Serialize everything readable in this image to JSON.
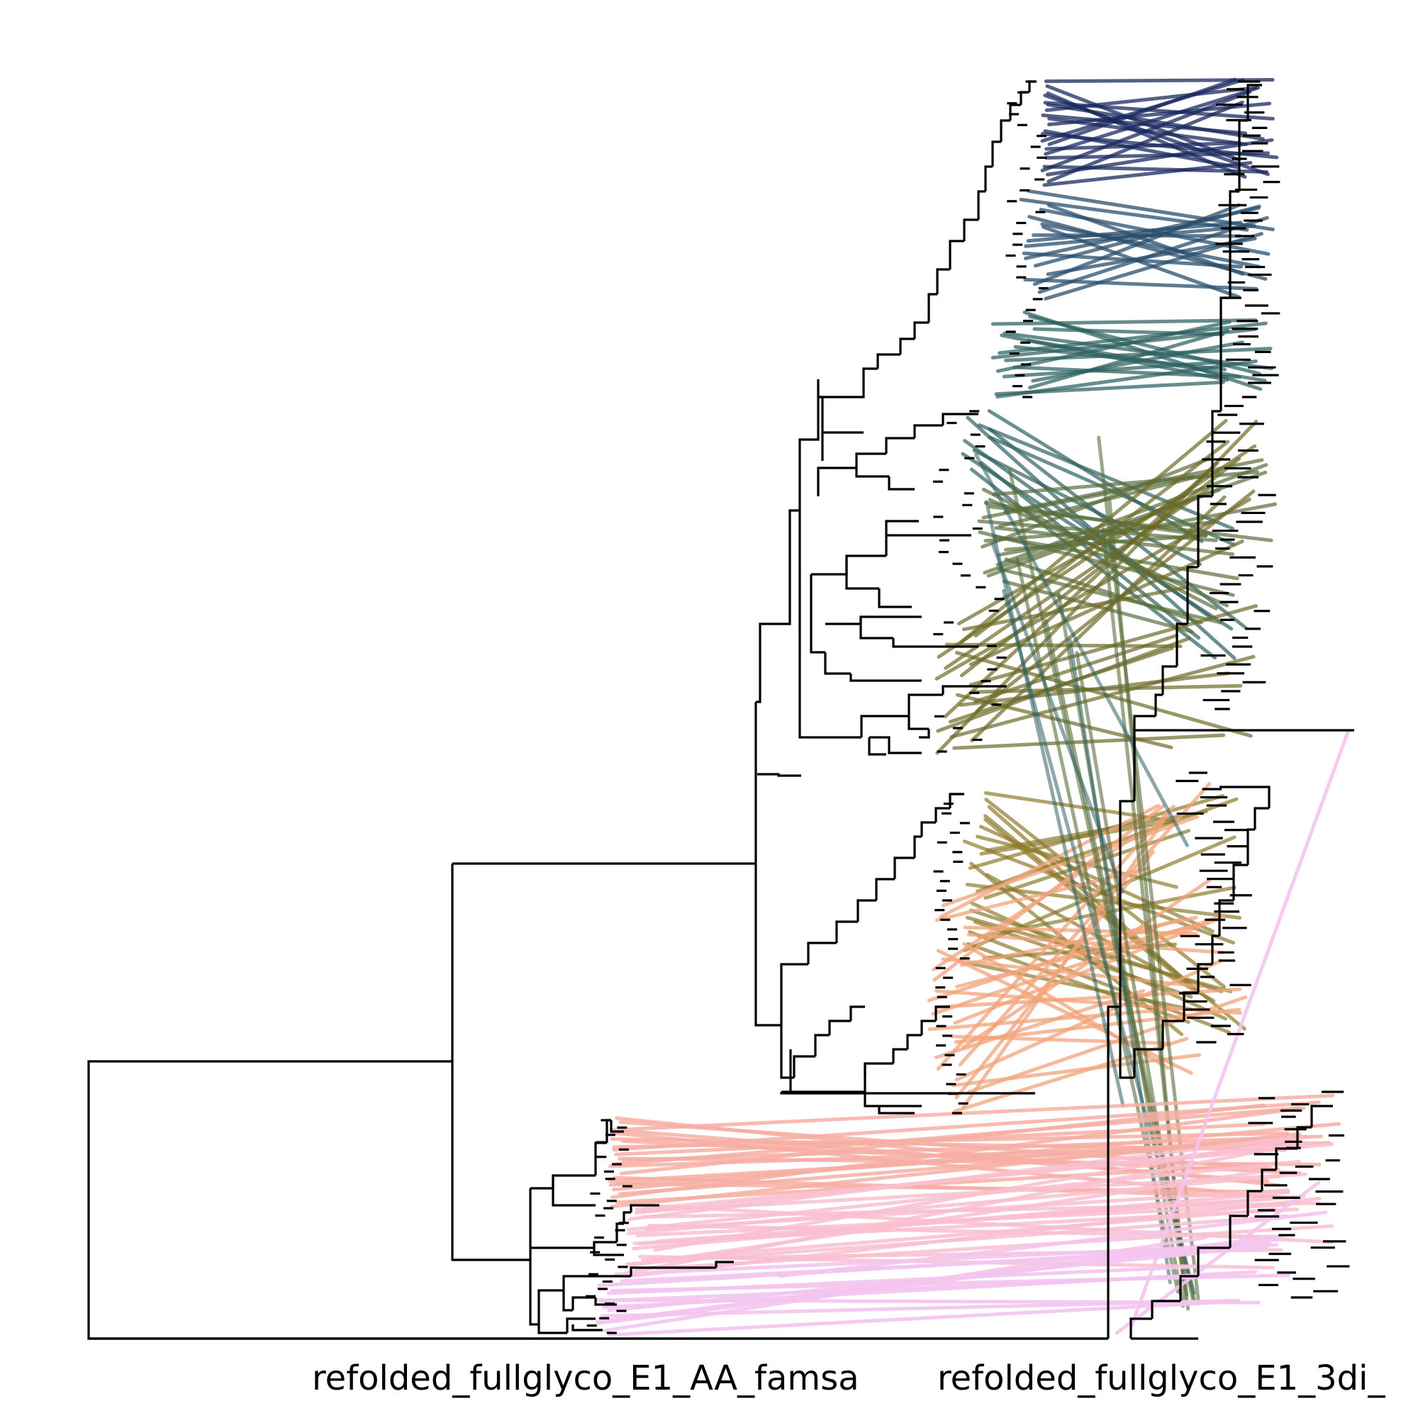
{
  "labels": {
    "left_tree": "refolded_fullglyco_E1_AA_famsa",
    "right_tree": "refolded_fullglyco_E1_3di_"
  },
  "colors": {
    "branch": "#000000",
    "groups": [
      "#1a2a5e",
      "#2a4f6e",
      "#2d6060",
      "#5a6e3a",
      "#6e6a26",
      "#8f7a2c",
      "#f2a37a",
      "#f7aea3",
      "#f9bfd0",
      "#f4c4ee"
    ]
  }
}
